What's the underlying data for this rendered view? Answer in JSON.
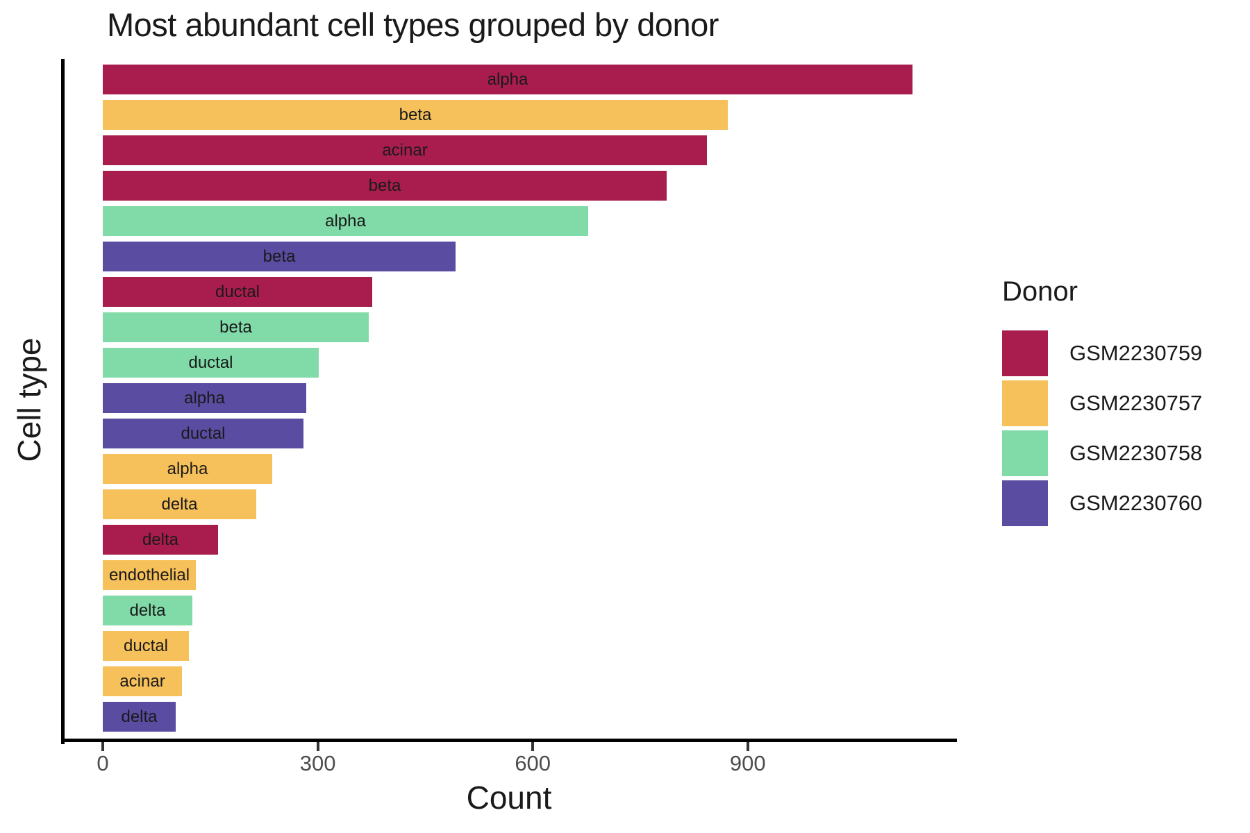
{
  "page": {
    "title": "Most abundant cell types grouped by donor"
  },
  "axes": {
    "x_title": "Count",
    "y_title": "Cell type",
    "x_tick_labels": [
      "0",
      "300",
      "600",
      "900"
    ]
  },
  "legend": {
    "title": "Donor",
    "entries": [
      {
        "label": "GSM2230759",
        "color": "#A81D4D"
      },
      {
        "label": "GSM2230757",
        "color": "#F6C05A"
      },
      {
        "label": "GSM2230758",
        "color": "#80DBA8"
      },
      {
        "label": "GSM2230760",
        "color": "#594CA1"
      }
    ]
  },
  "colors": {
    "axis_line": "#000000",
    "tick_mark": "#333333",
    "tick_label": "#4D4D4D",
    "text": "#1A1A1A",
    "background": "#FFFFFF"
  },
  "chart_data": {
    "type": "bar",
    "orientation": "horizontal",
    "title": "Most abundant cell types grouped by donor",
    "xlabel": "Count",
    "ylabel": "Cell type",
    "xlim": [
      0,
      1190
    ],
    "x_ticks": [
      0,
      300,
      600,
      900
    ],
    "grid": false,
    "legend_title": "Donor",
    "legend_position": "right",
    "series_colors": {
      "GSM2230759": "#A81D4D",
      "GSM2230757": "#F6C05A",
      "GSM2230758": "#80DBA8",
      "GSM2230760": "#594CA1"
    },
    "bars": [
      {
        "cell_type": "alpha",
        "donor": "GSM2230759",
        "count": 1130
      },
      {
        "cell_type": "beta",
        "donor": "GSM2230757",
        "count": 872
      },
      {
        "cell_type": "acinar",
        "donor": "GSM2230759",
        "count": 843
      },
      {
        "cell_type": "beta",
        "donor": "GSM2230759",
        "count": 787
      },
      {
        "cell_type": "alpha",
        "donor": "GSM2230758",
        "count": 677
      },
      {
        "cell_type": "beta",
        "donor": "GSM2230760",
        "count": 492
      },
      {
        "cell_type": "ductal",
        "donor": "GSM2230759",
        "count": 376
      },
      {
        "cell_type": "beta",
        "donor": "GSM2230758",
        "count": 371
      },
      {
        "cell_type": "ductal",
        "donor": "GSM2230758",
        "count": 301
      },
      {
        "cell_type": "alpha",
        "donor": "GSM2230760",
        "count": 284
      },
      {
        "cell_type": "ductal",
        "donor": "GSM2230760",
        "count": 280
      },
      {
        "cell_type": "alpha",
        "donor": "GSM2230757",
        "count": 236
      },
      {
        "cell_type": "delta",
        "donor": "GSM2230757",
        "count": 214
      },
      {
        "cell_type": "delta",
        "donor": "GSM2230759",
        "count": 161
      },
      {
        "cell_type": "endothelial",
        "donor": "GSM2230757",
        "count": 130
      },
      {
        "cell_type": "delta",
        "donor": "GSM2230758",
        "count": 125
      },
      {
        "cell_type": "ductal",
        "donor": "GSM2230757",
        "count": 120
      },
      {
        "cell_type": "acinar",
        "donor": "GSM2230757",
        "count": 110
      },
      {
        "cell_type": "delta",
        "donor": "GSM2230760",
        "count": 102
      }
    ]
  }
}
